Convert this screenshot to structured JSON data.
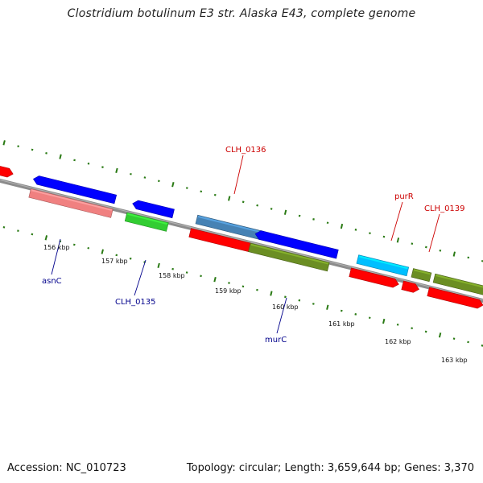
{
  "title": "Clostridium botulinum E3 str. Alaska E43, complete genome",
  "footer": {
    "accession": "Accession: NC_010723",
    "summary": "Topology: circular; Length: 3,659,644 bp; Genes: 3,370"
  },
  "colors": {
    "backbone": "#8c8c8c",
    "ticks": "#2a7a14",
    "forward_label": "#cc0000",
    "reverse_label": "#00008b",
    "kbp_label": "#111111"
  },
  "kbp_labels": [
    {
      "id": "156",
      "text": "156 kbp"
    },
    {
      "id": "157",
      "text": "157 kbp"
    },
    {
      "id": "158",
      "text": "158 kbp"
    },
    {
      "id": "159",
      "text": "159 kbp"
    },
    {
      "id": "160",
      "text": "160 kbp"
    },
    {
      "id": "161",
      "text": "161 kbp"
    },
    {
      "id": "162",
      "text": "162 kbp"
    },
    {
      "id": "163",
      "text": "163 kbp"
    }
  ],
  "gene_labels": [
    {
      "id": "clh0136",
      "text": "CLH_0136",
      "strand": "forward"
    },
    {
      "id": "purr",
      "text": "purR",
      "strand": "forward"
    },
    {
      "id": "clh0139",
      "text": "CLH_0139",
      "strand": "forward"
    },
    {
      "id": "asnc",
      "text": "asnC",
      "strand": "reverse"
    },
    {
      "id": "clh0135",
      "text": "CLH_0135",
      "strand": "reverse"
    },
    {
      "id": "murc",
      "text": "murC",
      "strand": "reverse"
    }
  ],
  "features": [
    {
      "id": "f-edge",
      "color": "#ff0000"
    },
    {
      "id": "f-blue-1",
      "color": "#0000ff"
    },
    {
      "id": "f-pink-1",
      "color": "#f08080"
    },
    {
      "id": "f-blue-2",
      "color": "#0000ff"
    },
    {
      "id": "f-green-2",
      "color": "#32cd32"
    },
    {
      "id": "f-steel-3",
      "color": "#4682b4"
    },
    {
      "id": "f-red-3",
      "color": "#ff0000"
    },
    {
      "id": "f-blue-4",
      "color": "#0000ff"
    },
    {
      "id": "f-olive-4",
      "color": "#6b8e23"
    },
    {
      "id": "f-sky-5",
      "color": "#00bfff"
    },
    {
      "id": "f-red-5",
      "color": "#ff0000"
    },
    {
      "id": "f-red-6",
      "color": "#ff0000"
    },
    {
      "id": "f-olive-6",
      "color": "#6b8e23"
    },
    {
      "id": "f-olive-7",
      "color": "#6b8e23"
    },
    {
      "id": "f-red-7",
      "color": "#ff0000"
    }
  ]
}
